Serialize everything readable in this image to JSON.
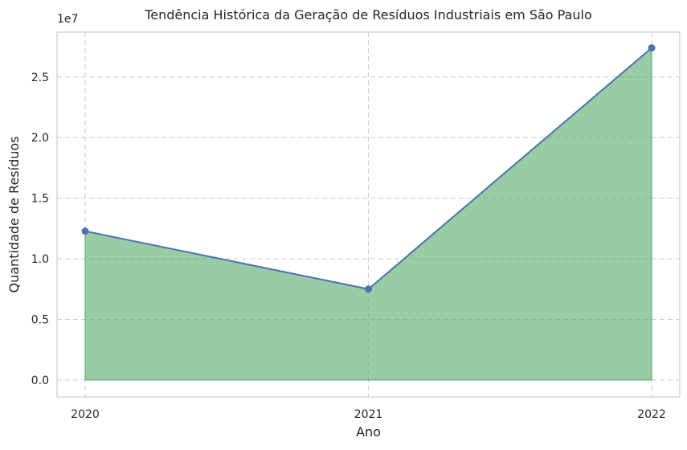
{
  "chart_data": {
    "type": "area",
    "title": "Tendência Histórica da Geração de Resíduos Industriais em São Paulo",
    "xlabel": "Ano",
    "ylabel": "Quantidade de Resíduos",
    "y_offset_label": "1e7",
    "x": [
      "2020",
      "2021",
      "2022"
    ],
    "values": [
      12280000,
      7500000,
      27400000
    ],
    "ylim": [
      -1400000,
      28700000
    ],
    "yticks": [
      0,
      5000000,
      10000000,
      15000000,
      20000000,
      25000000
    ],
    "ytick_labels": [
      "0.0",
      "0.5",
      "1.0",
      "1.5",
      "2.0",
      "2.5"
    ],
    "grid": true,
    "colors": {
      "line": "#4c72b0",
      "fill": "#55a868",
      "grid": "#cccccc",
      "frame": "#cccccc"
    }
  }
}
